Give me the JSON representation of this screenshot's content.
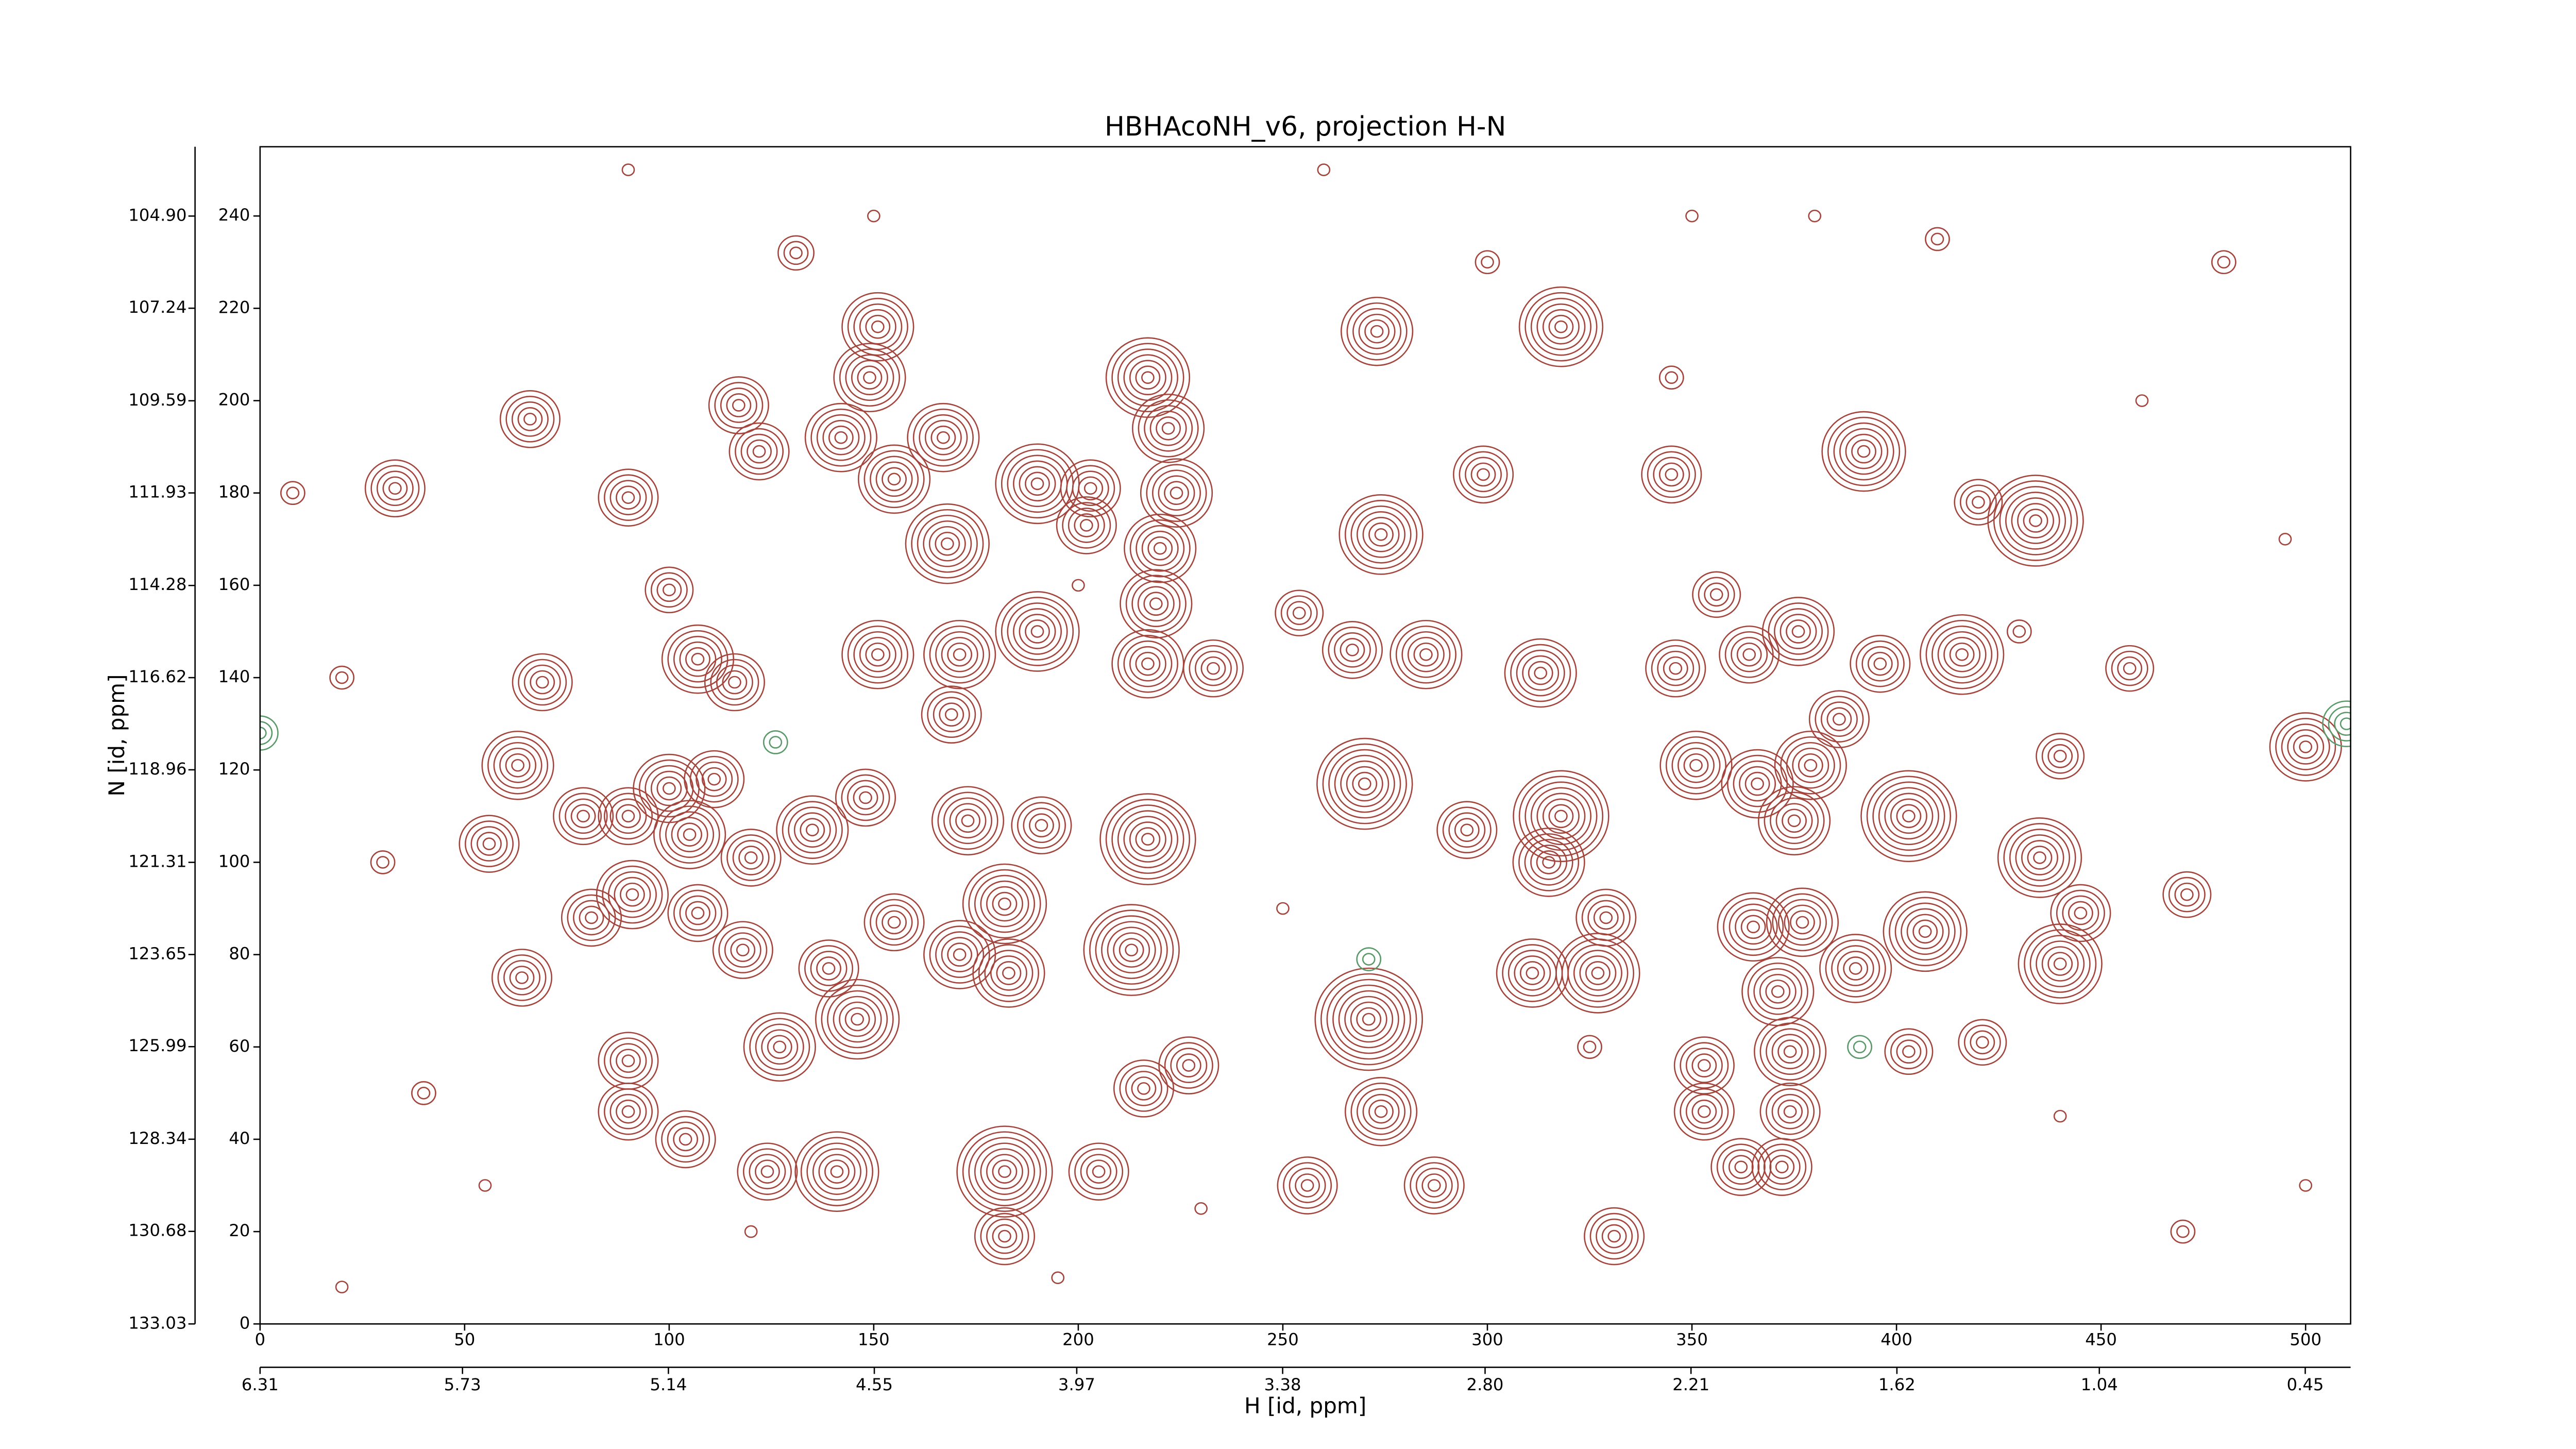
{
  "chart_data": {
    "type": "contour",
    "title": "HBHAcoNH_v6, projection H-N",
    "x_label": "H [id, ppm]",
    "y_label": "N [id, ppm]",
    "xlim": [
      0,
      511
    ],
    "xticks": [
      0,
      50,
      100,
      150,
      200,
      250,
      300,
      350,
      400,
      450,
      500
    ],
    "ylim": [
      0,
      255
    ],
    "yticks": [
      0,
      20,
      40,
      60,
      80,
      100,
      120,
      140,
      160,
      180,
      200,
      220,
      240
    ],
    "x2lim": [
      6.31,
      0.32
    ],
    "x2ticks": [
      6.31,
      5.73,
      5.14,
      4.55,
      3.97,
      3.38,
      {
        "value": 2.8,
        "label": "2.80"
      },
      2.21,
      1.62,
      1.04,
      0.45
    ],
    "y2lim": [
      133.03,
      103.14
    ],
    "y2ticks": [
      133.03,
      130.68,
      128.34,
      125.99,
      123.65,
      121.31,
      118.96,
      116.62,
      114.28,
      111.93,
      109.59,
      107.24,
      {
        "value": 104.9,
        "label": "104.90"
      }
    ],
    "positive_peaks": {
      "color": "#a3453c",
      "x": [
        66,
        33,
        90,
        117,
        122,
        131,
        151,
        149,
        142,
        167,
        155,
        168,
        190,
        203,
        202,
        217,
        222,
        224,
        220,
        219,
        190,
        171,
        151,
        107,
        116,
        100,
        69,
        63,
        56,
        79,
        90,
        100,
        111,
        105,
        81,
        91,
        107,
        118,
        120,
        135,
        148,
        155,
        173,
        191,
        182,
        171,
        183,
        213,
        217,
        146,
        127,
        139,
        90,
        90,
        104,
        124,
        141,
        182,
        182,
        205,
        216,
        227,
        64,
        169,
        217,
        233,
        254,
        270,
        271,
        274,
        256,
        287,
        273,
        318,
        274,
        267,
        285,
        299,
        313,
        295,
        318,
        315,
        329,
        311,
        327,
        331,
        345,
        346,
        356,
        364,
        376,
        396,
        416,
        351,
        366,
        379,
        386,
        375,
        403,
        392,
        434,
        420,
        365,
        377,
        407,
        390,
        371,
        374,
        353,
        353,
        374,
        403,
        421,
        435,
        445,
        440,
        440,
        457,
        471,
        362,
        372,
        500,
        20,
        40,
        8,
        150,
        195,
        260,
        300,
        350,
        410,
        480,
        495,
        30,
        500,
        470,
        440,
        230,
        325,
        250,
        20,
        90,
        345,
        460,
        200,
        120,
        55,
        380,
        430
      ],
      "y": [
        196,
        181,
        179,
        199,
        189,
        232,
        216,
        205,
        192,
        192,
        183,
        169,
        182,
        181,
        173,
        205,
        194,
        180,
        168,
        156,
        150,
        145,
        145,
        144,
        139,
        159,
        139,
        121,
        104,
        110,
        110,
        116,
        118,
        106,
        88,
        93,
        89,
        81,
        101,
        107,
        114,
        87,
        109,
        108,
        91,
        80,
        76,
        81,
        105,
        66,
        60,
        77,
        57,
        46,
        40,
        33,
        33,
        33,
        19,
        33,
        51,
        56,
        75,
        132,
        143,
        142,
        154,
        117,
        66,
        46,
        30,
        30,
        215,
        216,
        171,
        146,
        145,
        184,
        141,
        107,
        110,
        100,
        88,
        76,
        76,
        19,
        184,
        142,
        158,
        145,
        150,
        143,
        145,
        121,
        117,
        121,
        131,
        109,
        110,
        189,
        174,
        178,
        86,
        87,
        85,
        77,
        72,
        59,
        56,
        46,
        46,
        59,
        61,
        101,
        89,
        78,
        123,
        142,
        93,
        34,
        34,
        125,
        8,
        50,
        180,
        240,
        10,
        250,
        230,
        240,
        235,
        230,
        170,
        100,
        30,
        20,
        45,
        25,
        60,
        90,
        140,
        250,
        205,
        200,
        160,
        20,
        30,
        240,
        150
      ],
      "levels": [
        5,
        5,
        5,
        5,
        5,
        3,
        6,
        6,
        6,
        6,
        6,
        7,
        7,
        5,
        5,
        7,
        6,
        6,
        6,
        6,
        7,
        6,
        6,
        6,
        5,
        4,
        5,
        6,
        5,
        5,
        5,
        6,
        5,
        6,
        5,
        6,
        5,
        5,
        5,
        6,
        5,
        5,
        6,
        5,
        7,
        6,
        6,
        8,
        8,
        7,
        6,
        5,
        5,
        5,
        5,
        5,
        7,
        8,
        5,
        5,
        5,
        5,
        5,
        5,
        6,
        5,
        4,
        8,
        9,
        6,
        5,
        5,
        6,
        7,
        7,
        5,
        6,
        5,
        6,
        5,
        8,
        6,
        5,
        6,
        7,
        5,
        5,
        5,
        4,
        5,
        6,
        5,
        7,
        6,
        6,
        6,
        5,
        6,
        8,
        7,
        8,
        4,
        6,
        6,
        7,
        6,
        6,
        6,
        5,
        5,
        5,
        4,
        4,
        7,
        5,
        7,
        4,
        4,
        4,
        5,
        5,
        6,
        1,
        2,
        2,
        1,
        1,
        1,
        2,
        1,
        2,
        2,
        1,
        2,
        1,
        2,
        1,
        1,
        2,
        1,
        2,
        1,
        2,
        1,
        1,
        1,
        1,
        1,
        2
      ]
    },
    "negative_peaks": {
      "color": "#5a9a6a",
      "x": [
        126,
        271,
        391,
        0,
        510
      ],
      "y": [
        126,
        79,
        60,
        128,
        130
      ],
      "levels": [
        2,
        2,
        2,
        3,
        4
      ]
    }
  }
}
